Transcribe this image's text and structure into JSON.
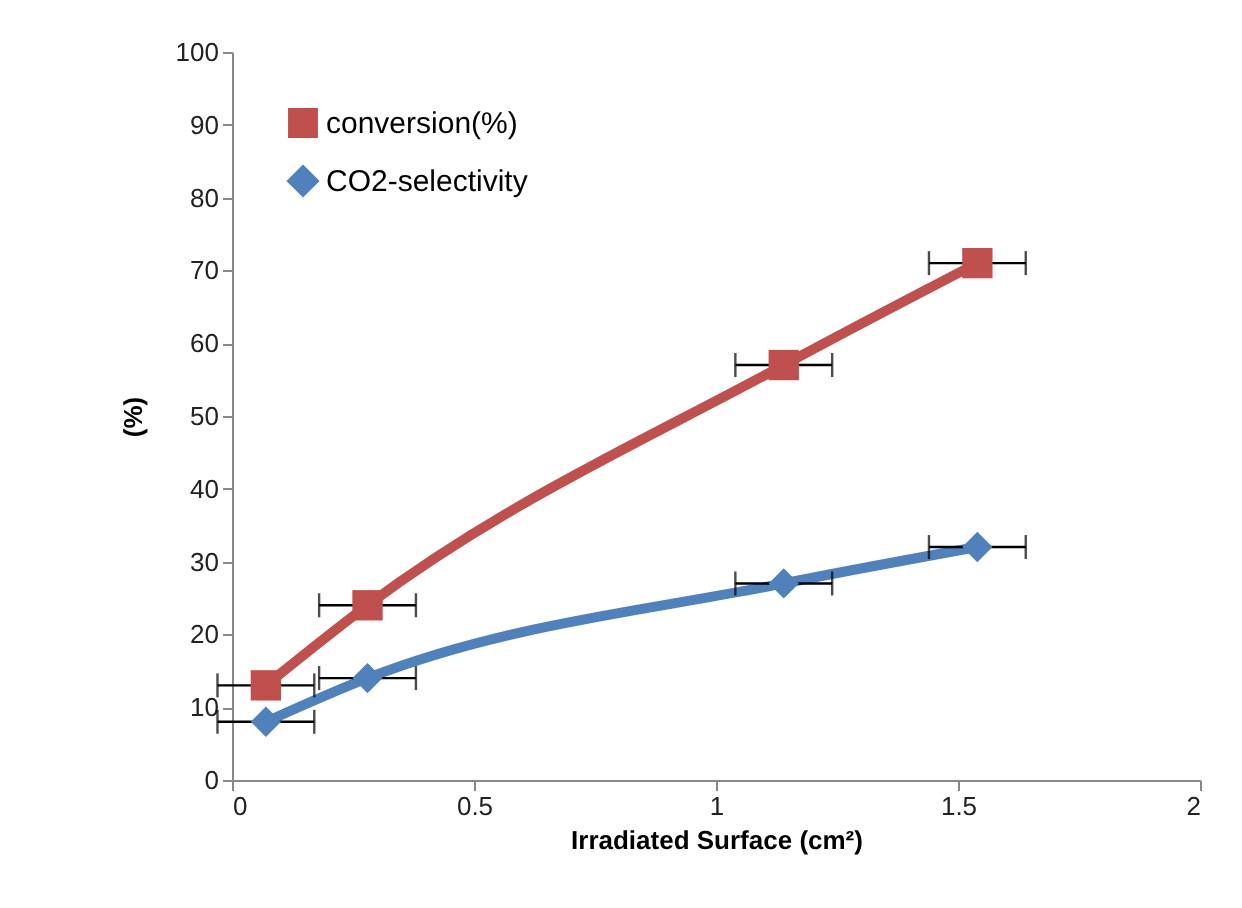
{
  "chart_data": {
    "type": "line",
    "xlabel": "Irradiated Surface (cm²)",
    "ylabel": "(%)",
    "xlim": [
      0,
      2
    ],
    "xticks": [
      0,
      0.5,
      1,
      1.5,
      2
    ],
    "ylim": [
      0,
      100
    ],
    "yticks": [
      0,
      10,
      20,
      30,
      40,
      50,
      60,
      70,
      80,
      90,
      100
    ],
    "x": [
      0.07,
      0.28,
      1.14,
      1.54
    ],
    "grid": false,
    "legend": "top left",
    "line_style": "solid",
    "series": [
      {
        "name": "conversion(%)",
        "color": "#c0504d",
        "marker": "square",
        "values": [
          13,
          24,
          57,
          71
        ],
        "xerrors": [
          0.1,
          0.1,
          0.1,
          0.1
        ]
      },
      {
        "name": "CO2-selectivity",
        "color": "#4f81bd",
        "marker": "diamond",
        "values": [
          8,
          14,
          27,
          32
        ],
        "xerrors": [
          0.1,
          0.1,
          0.1,
          0.1
        ]
      }
    ]
  }
}
